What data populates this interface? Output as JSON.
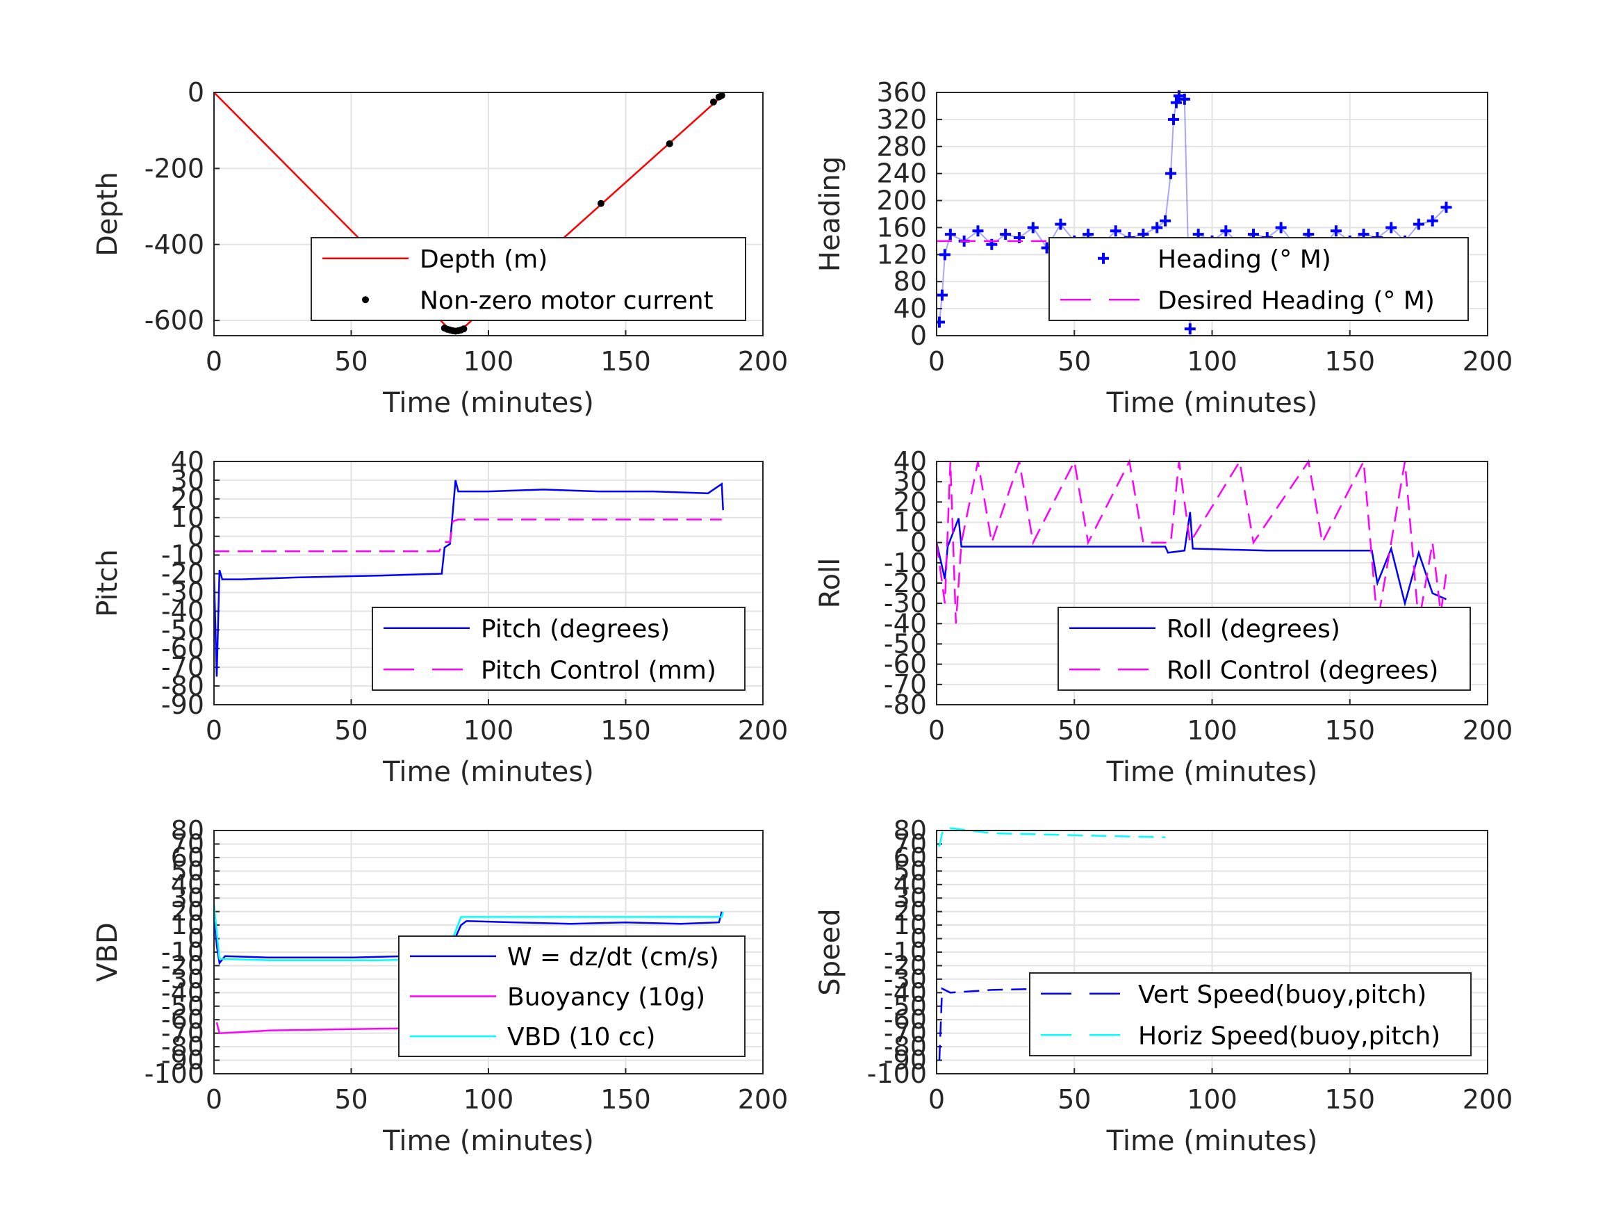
{
  "chart_data": [
    {
      "type": "line",
      "xlabel": "Time (minutes)",
      "ylabel": "Depth",
      "xlim": [
        0,
        200
      ],
      "ylim": [
        -640,
        0
      ],
      "xticks": [
        "0",
        "50",
        "100",
        "150",
        "200"
      ],
      "yticks": [
        "0",
        "-200",
        "-400",
        "-600"
      ],
      "yticks_values": [
        0,
        -200,
        -400,
        -600
      ],
      "grid": true,
      "legend_position": "bottom-right",
      "series": [
        {
          "name": "Depth (m)",
          "style": "solid",
          "color": "#ff0000",
          "points": [
            [
              0,
              0
            ],
            [
              86,
              -625
            ],
            [
              88,
              -628
            ],
            [
              90,
              -625
            ],
            [
              185,
              -10
            ]
          ]
        },
        {
          "name": "Non-zero motor current",
          "style": "dots",
          "color": "#000000",
          "points": [
            [
              84,
              -620
            ],
            [
              85,
              -623
            ],
            [
              86,
              -625
            ],
            [
              87,
              -627
            ],
            [
              88,
              -628
            ],
            [
              89,
              -627
            ],
            [
              90,
              -625
            ],
            [
              91,
              -622
            ],
            [
              141,
              -292
            ],
            [
              166,
              -135
            ],
            [
              182,
              -25
            ],
            [
              184,
              -12
            ],
            [
              185,
              -8
            ]
          ]
        }
      ]
    },
    {
      "type": "scatter",
      "xlabel": "Time (minutes)",
      "ylabel": "Heading",
      "xlim": [
        0,
        200
      ],
      "ylim": [
        0,
        360
      ],
      "xticks": [
        "0",
        "50",
        "100",
        "150",
        "200"
      ],
      "yticks": [
        "0",
        "40",
        "80",
        "120",
        "160",
        "200",
        "240",
        "280",
        "320",
        "360"
      ],
      "yticks_values": [
        0,
        40,
        80,
        120,
        160,
        200,
        240,
        280,
        320,
        360
      ],
      "grid": true,
      "legend_position": "bottom-right",
      "series": [
        {
          "name": "Heading (° M)",
          "style": "plus",
          "color": "#0000ff",
          "points": [
            [
              1,
              20
            ],
            [
              2,
              60
            ],
            [
              3,
              120
            ],
            [
              5,
              150
            ],
            [
              10,
              140
            ],
            [
              15,
              155
            ],
            [
              20,
              135
            ],
            [
              25,
              150
            ],
            [
              30,
              145
            ],
            [
              35,
              160
            ],
            [
              40,
              130
            ],
            [
              45,
              165
            ],
            [
              50,
              140
            ],
            [
              55,
              150
            ],
            [
              60,
              135
            ],
            [
              65,
              155
            ],
            [
              70,
              145
            ],
            [
              75,
              150
            ],
            [
              80,
              160
            ],
            [
              83,
              170
            ],
            [
              85,
              240
            ],
            [
              86,
              320
            ],
            [
              87,
              345
            ],
            [
              88,
              355
            ],
            [
              90,
              350
            ],
            [
              92,
              10
            ],
            [
              93,
              130
            ],
            [
              95,
              150
            ],
            [
              100,
              140
            ],
            [
              105,
              155
            ],
            [
              110,
              135
            ],
            [
              115,
              150
            ],
            [
              120,
              145
            ],
            [
              125,
              160
            ],
            [
              130,
              135
            ],
            [
              135,
              150
            ],
            [
              140,
              130
            ],
            [
              145,
              155
            ],
            [
              150,
              140
            ],
            [
              155,
              150
            ],
            [
              160,
              145
            ],
            [
              165,
              160
            ],
            [
              170,
              140
            ],
            [
              175,
              165
            ],
            [
              180,
              170
            ],
            [
              185,
              190
            ]
          ]
        },
        {
          "name": "Desired Heading (° M)",
          "style": "dashed",
          "color": "#ff00ff",
          "points": [
            [
              0,
              140
            ],
            [
              185,
              140
            ]
          ]
        }
      ]
    },
    {
      "type": "line",
      "xlabel": "Time (minutes)",
      "ylabel": "Pitch",
      "xlim": [
        0,
        200
      ],
      "ylim": [
        -90,
        40
      ],
      "xticks": [
        "0",
        "50",
        "100",
        "150",
        "200"
      ],
      "yticks": [
        "40",
        "30",
        "20",
        "10",
        "0",
        "-10",
        "-20",
        "-30",
        "-40",
        "-50",
        "-60",
        "-70",
        "-80",
        "-90"
      ],
      "yticks_values": [
        40,
        30,
        20,
        10,
        0,
        -10,
        -20,
        -30,
        -40,
        -50,
        -60,
        -70,
        -80,
        -90
      ],
      "grid": true,
      "legend_position": "bottom-right",
      "series": [
        {
          "name": "Pitch (degrees)",
          "style": "solid",
          "color": "#0000ff",
          "points": [
            [
              0,
              -20
            ],
            [
              1,
              -75
            ],
            [
              2,
              -18
            ],
            [
              3,
              -23
            ],
            [
              10,
              -23
            ],
            [
              30,
              -22
            ],
            [
              60,
              -21
            ],
            [
              83,
              -20
            ],
            [
              84,
              -6
            ],
            [
              86,
              -4
            ],
            [
              88,
              30
            ],
            [
              89,
              24
            ],
            [
              100,
              24
            ],
            [
              120,
              25
            ],
            [
              140,
              24
            ],
            [
              160,
              24
            ],
            [
              180,
              23
            ],
            [
              185,
              28
            ],
            [
              185.5,
              14
            ]
          ]
        },
        {
          "name": "Pitch Control (mm)",
          "style": "dashed",
          "color": "#ff00ff",
          "points": [
            [
              0,
              -8
            ],
            [
              82,
              -8
            ],
            [
              84,
              -3
            ],
            [
              86,
              -3
            ],
            [
              87,
              8
            ],
            [
              89,
              9
            ],
            [
              185,
              9
            ]
          ]
        }
      ]
    },
    {
      "type": "line",
      "xlabel": "Time (minutes)",
      "ylabel": "Roll",
      "xlim": [
        0,
        200
      ],
      "ylim": [
        -80,
        40
      ],
      "xticks": [
        "0",
        "50",
        "100",
        "150",
        "200"
      ],
      "yticks": [
        "40",
        "30",
        "20",
        "10",
        "0",
        "-10",
        "-20",
        "-30",
        "-40",
        "-50",
        "-60",
        "-70",
        "-80"
      ],
      "yticks_values": [
        40,
        30,
        20,
        10,
        0,
        -10,
        -20,
        -30,
        -40,
        -50,
        -60,
        -70,
        -80
      ],
      "grid": true,
      "legend_position": "bottom-right",
      "series": [
        {
          "name": "Roll (degrees)",
          "style": "solid",
          "color": "#0000ff",
          "points": [
            [
              0,
              0
            ],
            [
              3,
              -18
            ],
            [
              4,
              -2
            ],
            [
              8,
              12
            ],
            [
              9,
              -2
            ],
            [
              30,
              -2
            ],
            [
              50,
              -2
            ],
            [
              70,
              -2
            ],
            [
              83,
              -2
            ],
            [
              84,
              -5
            ],
            [
              90,
              -4
            ],
            [
              92,
              15
            ],
            [
              93,
              -3
            ],
            [
              120,
              -4
            ],
            [
              140,
              -4
            ],
            [
              158,
              -4
            ],
            [
              160,
              -20
            ],
            [
              165,
              -3
            ],
            [
              170,
              -30
            ],
            [
              175,
              -5
            ],
            [
              180,
              -25
            ],
            [
              185,
              -28
            ]
          ]
        },
        {
          "name": "Roll Control (degrees)",
          "style": "dashed",
          "color": "#ff00ff",
          "points": [
            [
              0,
              0
            ],
            [
              3,
              -30
            ],
            [
              5,
              40
            ],
            [
              7,
              -40
            ],
            [
              9,
              0
            ],
            [
              15,
              40
            ],
            [
              20,
              0
            ],
            [
              30,
              40
            ],
            [
              35,
              0
            ],
            [
              50,
              40
            ],
            [
              55,
              0
            ],
            [
              70,
              40
            ],
            [
              75,
              0
            ],
            [
              85,
              0
            ],
            [
              88,
              40
            ],
            [
              92,
              0
            ],
            [
              110,
              40
            ],
            [
              115,
              0
            ],
            [
              135,
              40
            ],
            [
              140,
              0
            ],
            [
              155,
              40
            ],
            [
              160,
              -40
            ],
            [
              165,
              0
            ],
            [
              170,
              40
            ],
            [
              175,
              -40
            ],
            [
              180,
              0
            ],
            [
              183,
              -35
            ],
            [
              185,
              -15
            ]
          ]
        }
      ]
    },
    {
      "type": "line",
      "xlabel": "Time (minutes)",
      "ylabel": "VBD",
      "xlim": [
        0,
        200
      ],
      "ylim": [
        -100,
        80
      ],
      "xticks": [
        "0",
        "50",
        "100",
        "150",
        "200"
      ],
      "yticks": [
        "80",
        "70",
        "60",
        "50",
        "40",
        "30",
        "20",
        "10",
        "0",
        "-10",
        "-20",
        "-30",
        "-40",
        "-50",
        "-60",
        "-70",
        "-80",
        "-90",
        "-100"
      ],
      "yticks_values": [
        80,
        70,
        60,
        50,
        40,
        30,
        20,
        10,
        0,
        -10,
        -20,
        -30,
        -40,
        -50,
        -60,
        -70,
        -80,
        -90,
        -100
      ],
      "grid": true,
      "legend_position": "bottom-right",
      "series": [
        {
          "name": "W = dz/dt (cm/s)",
          "style": "solid",
          "color": "#0000ff",
          "points": [
            [
              0,
              20
            ],
            [
              1,
              -5
            ],
            [
              2,
              -18
            ],
            [
              4,
              -13
            ],
            [
              20,
              -14
            ],
            [
              50,
              -14
            ],
            [
              70,
              -13
            ],
            [
              83,
              -11
            ],
            [
              86,
              -8
            ],
            [
              90,
              10
            ],
            [
              92,
              13
            ],
            [
              110,
              12
            ],
            [
              130,
              11
            ],
            [
              150,
              12
            ],
            [
              170,
              11
            ],
            [
              184,
              12
            ],
            [
              185,
              20
            ]
          ]
        },
        {
          "name": "Buoyancy (10g)",
          "style": "solid",
          "color": "#ff00ff",
          "points": [
            [
              1,
              -62
            ],
            [
              2,
              -70
            ],
            [
              20,
              -68
            ],
            [
              50,
              -67
            ],
            [
              83,
              -66
            ]
          ]
        },
        {
          "name": "VBD (10 cc)",
          "style": "solid",
          "color": "#00ffff",
          "points": [
            [
              0,
              25
            ],
            [
              2,
              -15
            ],
            [
              20,
              -16
            ],
            [
              60,
              -16
            ],
            [
              83,
              -15
            ],
            [
              87,
              0
            ],
            [
              90,
              16
            ],
            [
              110,
              16
            ],
            [
              150,
              16
            ],
            [
              185,
              16
            ],
            [
              185.5,
              20
            ]
          ]
        }
      ]
    },
    {
      "type": "line",
      "xlabel": "Time (minutes)",
      "ylabel": "Speed",
      "xlim": [
        0,
        200
      ],
      "ylim": [
        -100,
        80
      ],
      "xticks": [
        "0",
        "50",
        "100",
        "150",
        "200"
      ],
      "yticks": [
        "80",
        "70",
        "60",
        "50",
        "40",
        "30",
        "20",
        "10",
        "0",
        "-10",
        "-20",
        "-30",
        "-40",
        "-50",
        "-60",
        "-70",
        "-80",
        "-90",
        "-100"
      ],
      "yticks_values": [
        80,
        70,
        60,
        50,
        40,
        30,
        20,
        10,
        0,
        -10,
        -20,
        -30,
        -40,
        -50,
        -60,
        -70,
        -80,
        -90,
        -100
      ],
      "grid": true,
      "legend_position": "bottom-right",
      "series": [
        {
          "name": "Vert Speed(buoy,pitch)",
          "style": "dashed",
          "color": "#0000ff",
          "points": [
            [
              1,
              -90
            ],
            [
              2,
              -37
            ],
            [
              5,
              -40
            ],
            [
              20,
              -38
            ],
            [
              40,
              -37
            ],
            [
              60,
              -36
            ],
            [
              80,
              -35
            ]
          ]
        },
        {
          "name": "Horiz Speed(buoy,pitch)",
          "style": "dashed",
          "color": "#00ffff",
          "points": [
            [
              1,
              68
            ],
            [
              2,
              78
            ],
            [
              4,
              82
            ],
            [
              20,
              78
            ],
            [
              40,
              77
            ],
            [
              60,
              76
            ],
            [
              83,
              75
            ]
          ]
        }
      ]
    }
  ]
}
